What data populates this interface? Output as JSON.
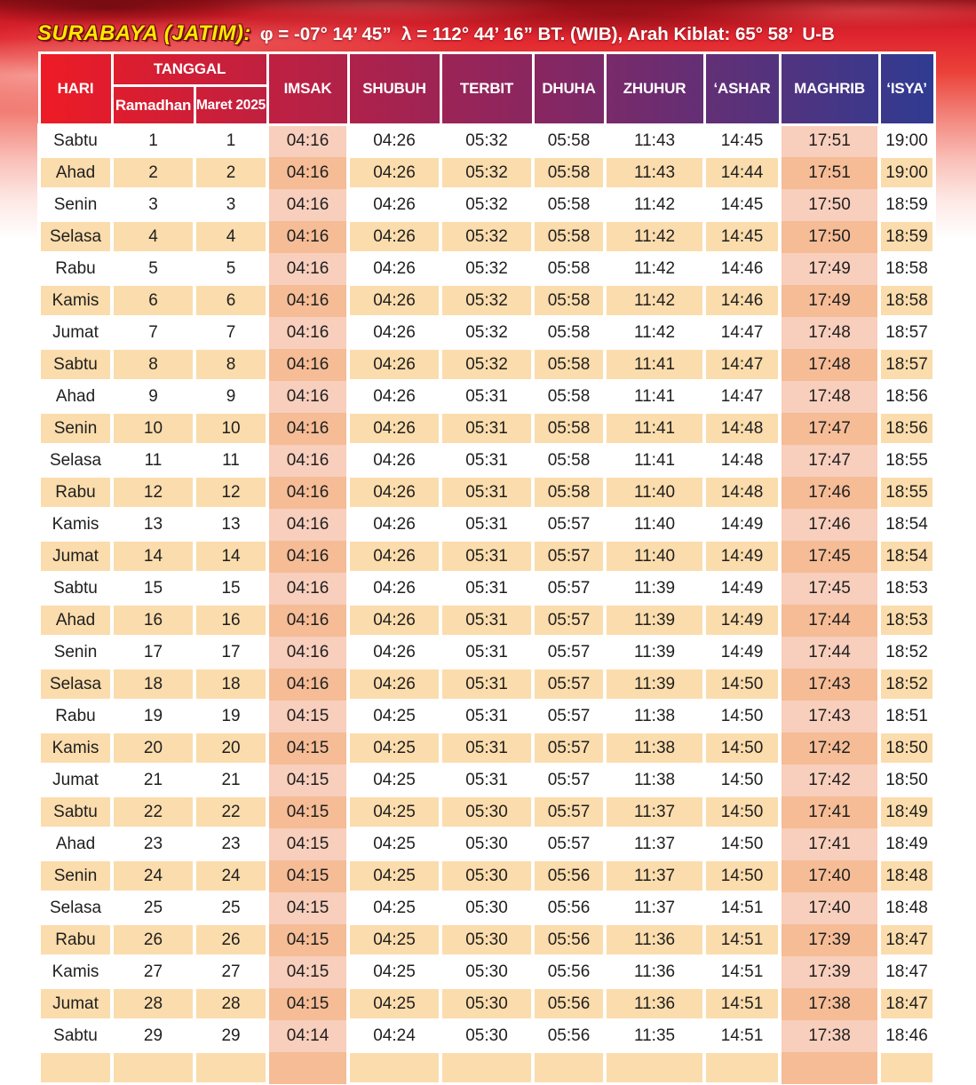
{
  "title": {
    "city": "SURABAYA (JATIM):",
    "details": "φ = -07° 14’ 45”  λ = 112° 44’ 16” BT. (WIB), Arah Kiblat: 65° 58’  U-B"
  },
  "table": {
    "headers": {
      "hari": "HARI",
      "tanggal": "TANGGAL",
      "ramadhan": "Ramadhan",
      "maret": "Maret 2025",
      "times": [
        "IMSAK",
        "SHUBUH",
        "TERBIT",
        "DHUHA",
        "ZHUHUR",
        "‘ASHAR",
        "MAGHRIB",
        "‘ISYA’"
      ]
    },
    "rows": [
      {
        "hari": "Sabtu",
        "ramadhan": "1",
        "maret": "1",
        "times": [
          "04:16",
          "04:26",
          "05:32",
          "05:58",
          "11:43",
          "14:45",
          "17:51",
          "19:00"
        ]
      },
      {
        "hari": "Ahad",
        "ramadhan": "2",
        "maret": "2",
        "times": [
          "04:16",
          "04:26",
          "05:32",
          "05:58",
          "11:43",
          "14:44",
          "17:51",
          "19:00"
        ]
      },
      {
        "hari": "Senin",
        "ramadhan": "3",
        "maret": "3",
        "times": [
          "04:16",
          "04:26",
          "05:32",
          "05:58",
          "11:42",
          "14:45",
          "17:50",
          "18:59"
        ]
      },
      {
        "hari": "Selasa",
        "ramadhan": "4",
        "maret": "4",
        "times": [
          "04:16",
          "04:26",
          "05:32",
          "05:58",
          "11:42",
          "14:45",
          "17:50",
          "18:59"
        ]
      },
      {
        "hari": "Rabu",
        "ramadhan": "5",
        "maret": "5",
        "times": [
          "04:16",
          "04:26",
          "05:32",
          "05:58",
          "11:42",
          "14:46",
          "17:49",
          "18:58"
        ]
      },
      {
        "hari": "Kamis",
        "ramadhan": "6",
        "maret": "6",
        "times": [
          "04:16",
          "04:26",
          "05:32",
          "05:58",
          "11:42",
          "14:46",
          "17:49",
          "18:58"
        ]
      },
      {
        "hari": "Jumat",
        "ramadhan": "7",
        "maret": "7",
        "times": [
          "04:16",
          "04:26",
          "05:32",
          "05:58",
          "11:42",
          "14:47",
          "17:48",
          "18:57"
        ]
      },
      {
        "hari": "Sabtu",
        "ramadhan": "8",
        "maret": "8",
        "times": [
          "04:16",
          "04:26",
          "05:32",
          "05:58",
          "11:41",
          "14:47",
          "17:48",
          "18:57"
        ]
      },
      {
        "hari": "Ahad",
        "ramadhan": "9",
        "maret": "9",
        "times": [
          "04:16",
          "04:26",
          "05:31",
          "05:58",
          "11:41",
          "14:47",
          "17:48",
          "18:56"
        ]
      },
      {
        "hari": "Senin",
        "ramadhan": "10",
        "maret": "10",
        "times": [
          "04:16",
          "04:26",
          "05:31",
          "05:58",
          "11:41",
          "14:48",
          "17:47",
          "18:56"
        ]
      },
      {
        "hari": "Selasa",
        "ramadhan": "11",
        "maret": "11",
        "times": [
          "04:16",
          "04:26",
          "05:31",
          "05:58",
          "11:41",
          "14:48",
          "17:47",
          "18:55"
        ]
      },
      {
        "hari": "Rabu",
        "ramadhan": "12",
        "maret": "12",
        "times": [
          "04:16",
          "04:26",
          "05:31",
          "05:58",
          "11:40",
          "14:48",
          "17:46",
          "18:55"
        ]
      },
      {
        "hari": "Kamis",
        "ramadhan": "13",
        "maret": "13",
        "times": [
          "04:16",
          "04:26",
          "05:31",
          "05:57",
          "11:40",
          "14:49",
          "17:46",
          "18:54"
        ]
      },
      {
        "hari": "Jumat",
        "ramadhan": "14",
        "maret": "14",
        "times": [
          "04:16",
          "04:26",
          "05:31",
          "05:57",
          "11:40",
          "14:49",
          "17:45",
          "18:54"
        ]
      },
      {
        "hari": "Sabtu",
        "ramadhan": "15",
        "maret": "15",
        "times": [
          "04:16",
          "04:26",
          "05:31",
          "05:57",
          "11:39",
          "14:49",
          "17:45",
          "18:53"
        ]
      },
      {
        "hari": "Ahad",
        "ramadhan": "16",
        "maret": "16",
        "times": [
          "04:16",
          "04:26",
          "05:31",
          "05:57",
          "11:39",
          "14:49",
          "17:44",
          "18:53"
        ]
      },
      {
        "hari": "Senin",
        "ramadhan": "17",
        "maret": "17",
        "times": [
          "04:16",
          "04:26",
          "05:31",
          "05:57",
          "11:39",
          "14:49",
          "17:44",
          "18:52"
        ]
      },
      {
        "hari": "Selasa",
        "ramadhan": "18",
        "maret": "18",
        "times": [
          "04:16",
          "04:26",
          "05:31",
          "05:57",
          "11:39",
          "14:50",
          "17:43",
          "18:52"
        ]
      },
      {
        "hari": "Rabu",
        "ramadhan": "19",
        "maret": "19",
        "times": [
          "04:15",
          "04:25",
          "05:31",
          "05:57",
          "11:38",
          "14:50",
          "17:43",
          "18:51"
        ]
      },
      {
        "hari": "Kamis",
        "ramadhan": "20",
        "maret": "20",
        "times": [
          "04:15",
          "04:25",
          "05:31",
          "05:57",
          "11:38",
          "14:50",
          "17:42",
          "18:50"
        ]
      },
      {
        "hari": "Jumat",
        "ramadhan": "21",
        "maret": "21",
        "times": [
          "04:15",
          "04:25",
          "05:31",
          "05:57",
          "11:38",
          "14:50",
          "17:42",
          "18:50"
        ]
      },
      {
        "hari": "Sabtu",
        "ramadhan": "22",
        "maret": "22",
        "times": [
          "04:15",
          "04:25",
          "05:30",
          "05:57",
          "11:37",
          "14:50",
          "17:41",
          "18:49"
        ]
      },
      {
        "hari": "Ahad",
        "ramadhan": "23",
        "maret": "23",
        "times": [
          "04:15",
          "04:25",
          "05:30",
          "05:57",
          "11:37",
          "14:50",
          "17:41",
          "18:49"
        ]
      },
      {
        "hari": "Senin",
        "ramadhan": "24",
        "maret": "24",
        "times": [
          "04:15",
          "04:25",
          "05:30",
          "05:56",
          "11:37",
          "14:50",
          "17:40",
          "18:48"
        ]
      },
      {
        "hari": "Selasa",
        "ramadhan": "25",
        "maret": "25",
        "times": [
          "04:15",
          "04:25",
          "05:30",
          "05:56",
          "11:37",
          "14:51",
          "17:40",
          "18:48"
        ]
      },
      {
        "hari": "Rabu",
        "ramadhan": "26",
        "maret": "26",
        "times": [
          "04:15",
          "04:25",
          "05:30",
          "05:56",
          "11:36",
          "14:51",
          "17:39",
          "18:47"
        ]
      },
      {
        "hari": "Kamis",
        "ramadhan": "27",
        "maret": "27",
        "times": [
          "04:15",
          "04:25",
          "05:30",
          "05:56",
          "11:36",
          "14:51",
          "17:39",
          "18:47"
        ]
      },
      {
        "hari": "Jumat",
        "ramadhan": "28",
        "maret": "28",
        "times": [
          "04:15",
          "04:25",
          "05:30",
          "05:56",
          "11:36",
          "14:51",
          "17:38",
          "18:47"
        ]
      },
      {
        "hari": "Sabtu",
        "ramadhan": "29",
        "maret": "29",
        "times": [
          "04:14",
          "04:24",
          "05:30",
          "05:56",
          "11:35",
          "14:51",
          "17:38",
          "18:46"
        ]
      }
    ]
  },
  "colors": {
    "header_gradient_left": "#ee1b25",
    "header_gradient_mid": "#8a2660",
    "header_gradient_right": "#2f3b92",
    "row_alt": "#fbdcac",
    "highlight_plain": "#f8cebc",
    "highlight_alt": "#f5bc96",
    "title_city": "#ffe800"
  }
}
